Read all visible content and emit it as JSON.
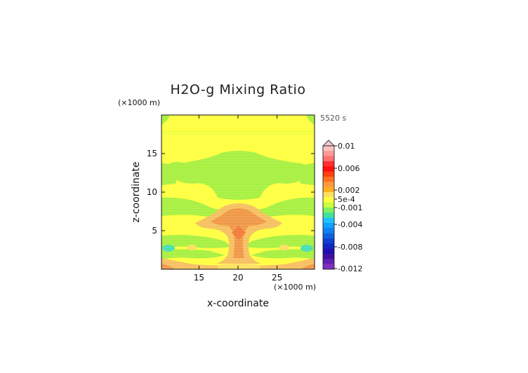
{
  "chart_data": {
    "type": "heatmap",
    "title": "H2O-g Mixing Ratio",
    "xlabel": "x-coordinate",
    "ylabel": "z-coordinate",
    "x_scale_label": "(×1000 m)",
    "y_scale_label": "(×1000 m)",
    "time_label": "5520 s",
    "xlim": [
      10.2,
      29.8
    ],
    "ylim": [
      0,
      20
    ],
    "x_ticks": [
      15,
      20,
      25
    ],
    "y_ticks": [
      5,
      10,
      15
    ],
    "x_tick_labels": [
      "15",
      "20",
      "25"
    ],
    "y_tick_labels": [
      "5",
      "10",
      "15"
    ],
    "colorbar": {
      "levels": [
        -0.012,
        -0.008,
        -0.004,
        -0.001,
        0.0005,
        0.002,
        0.006,
        0.01
      ],
      "labels": [
        "0.01",
        "0.006",
        "0.002",
        "5e-4",
        "-0.001",
        "-0.004",
        "-0.008",
        "-0.012"
      ],
      "colors_top_to_bottom": [
        "#ffc0c0",
        "#ff9898",
        "#ff7070",
        "#ff3030",
        "#ff1010",
        "#ff4010",
        "#ff7020",
        "#ff9840",
        "#ffb020",
        "#ffe060",
        "#ffff40",
        "#c8ff40",
        "#80f060",
        "#40e0a0",
        "#20c0ff",
        "#10a0ff",
        "#1080f0",
        "#1060e0",
        "#1040d0",
        "#1028c0",
        "#2010b0",
        "#4010a0",
        "#6020b0",
        "#8030c0"
      ],
      "triangle_color": "#f4c8cc"
    },
    "regions": [
      {
        "name": "background",
        "value": 0.0003,
        "color": "#ffff40"
      },
      {
        "name": "green-bands",
        "value": -0.0005,
        "color": "#a8f040"
      },
      {
        "name": "plume-outer",
        "value": 0.0015,
        "color": "#f6c060"
      },
      {
        "name": "plume-core",
        "value": 0.0022,
        "color": "#f09848"
      },
      {
        "name": "low-cyan-patches",
        "value": -0.0015,
        "color": "#48e0b0"
      }
    ]
  }
}
